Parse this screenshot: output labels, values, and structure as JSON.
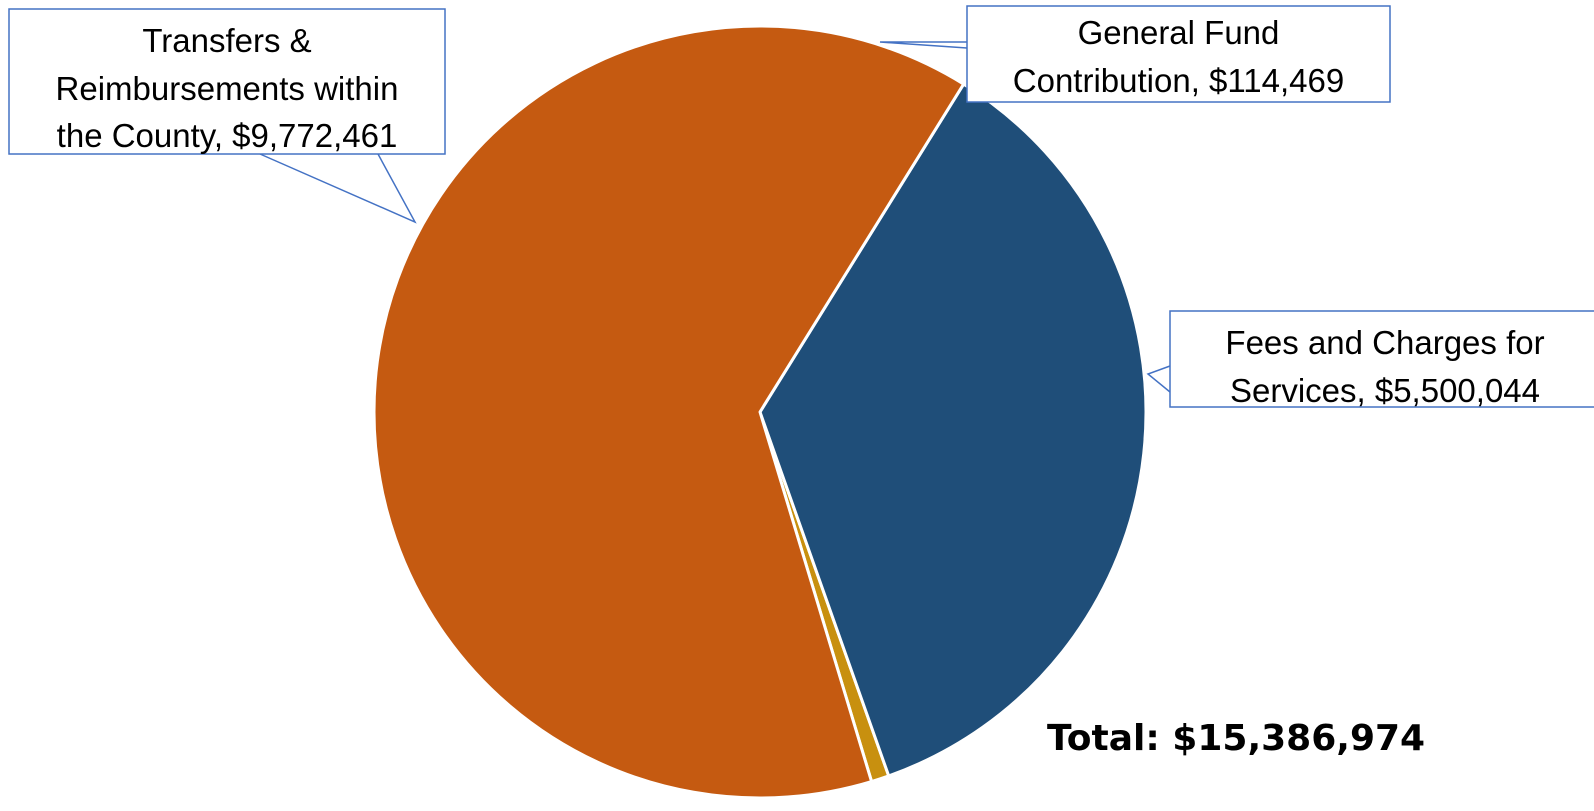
{
  "chart_data": {
    "type": "pie",
    "title": "",
    "slices": [
      {
        "name": "General Fund Contribution",
        "value": 114469,
        "label_lines": [
          "General Fund",
          "Contribution,  $114,469"
        ],
        "color": "#C8900F"
      },
      {
        "name": "Fees and Charges for Services",
        "value": 5500044,
        "label_lines": [
          "Fees and Charges for",
          "Services,  $5,500,044"
        ],
        "color": "#1F4E79"
      },
      {
        "name": "Transfers & Reimbursements within the County",
        "value": 9772461,
        "label_lines": [
          "Transfers &",
          "Reimbursements within",
          "the County,  $9,772,461"
        ],
        "color": "#C55A11"
      }
    ],
    "slice_border_color": "#FFFFFF",
    "callout_border_color": "#4472C4",
    "legend": "none",
    "total": {
      "label": "Total:",
      "value": "$15,386,974"
    }
  }
}
